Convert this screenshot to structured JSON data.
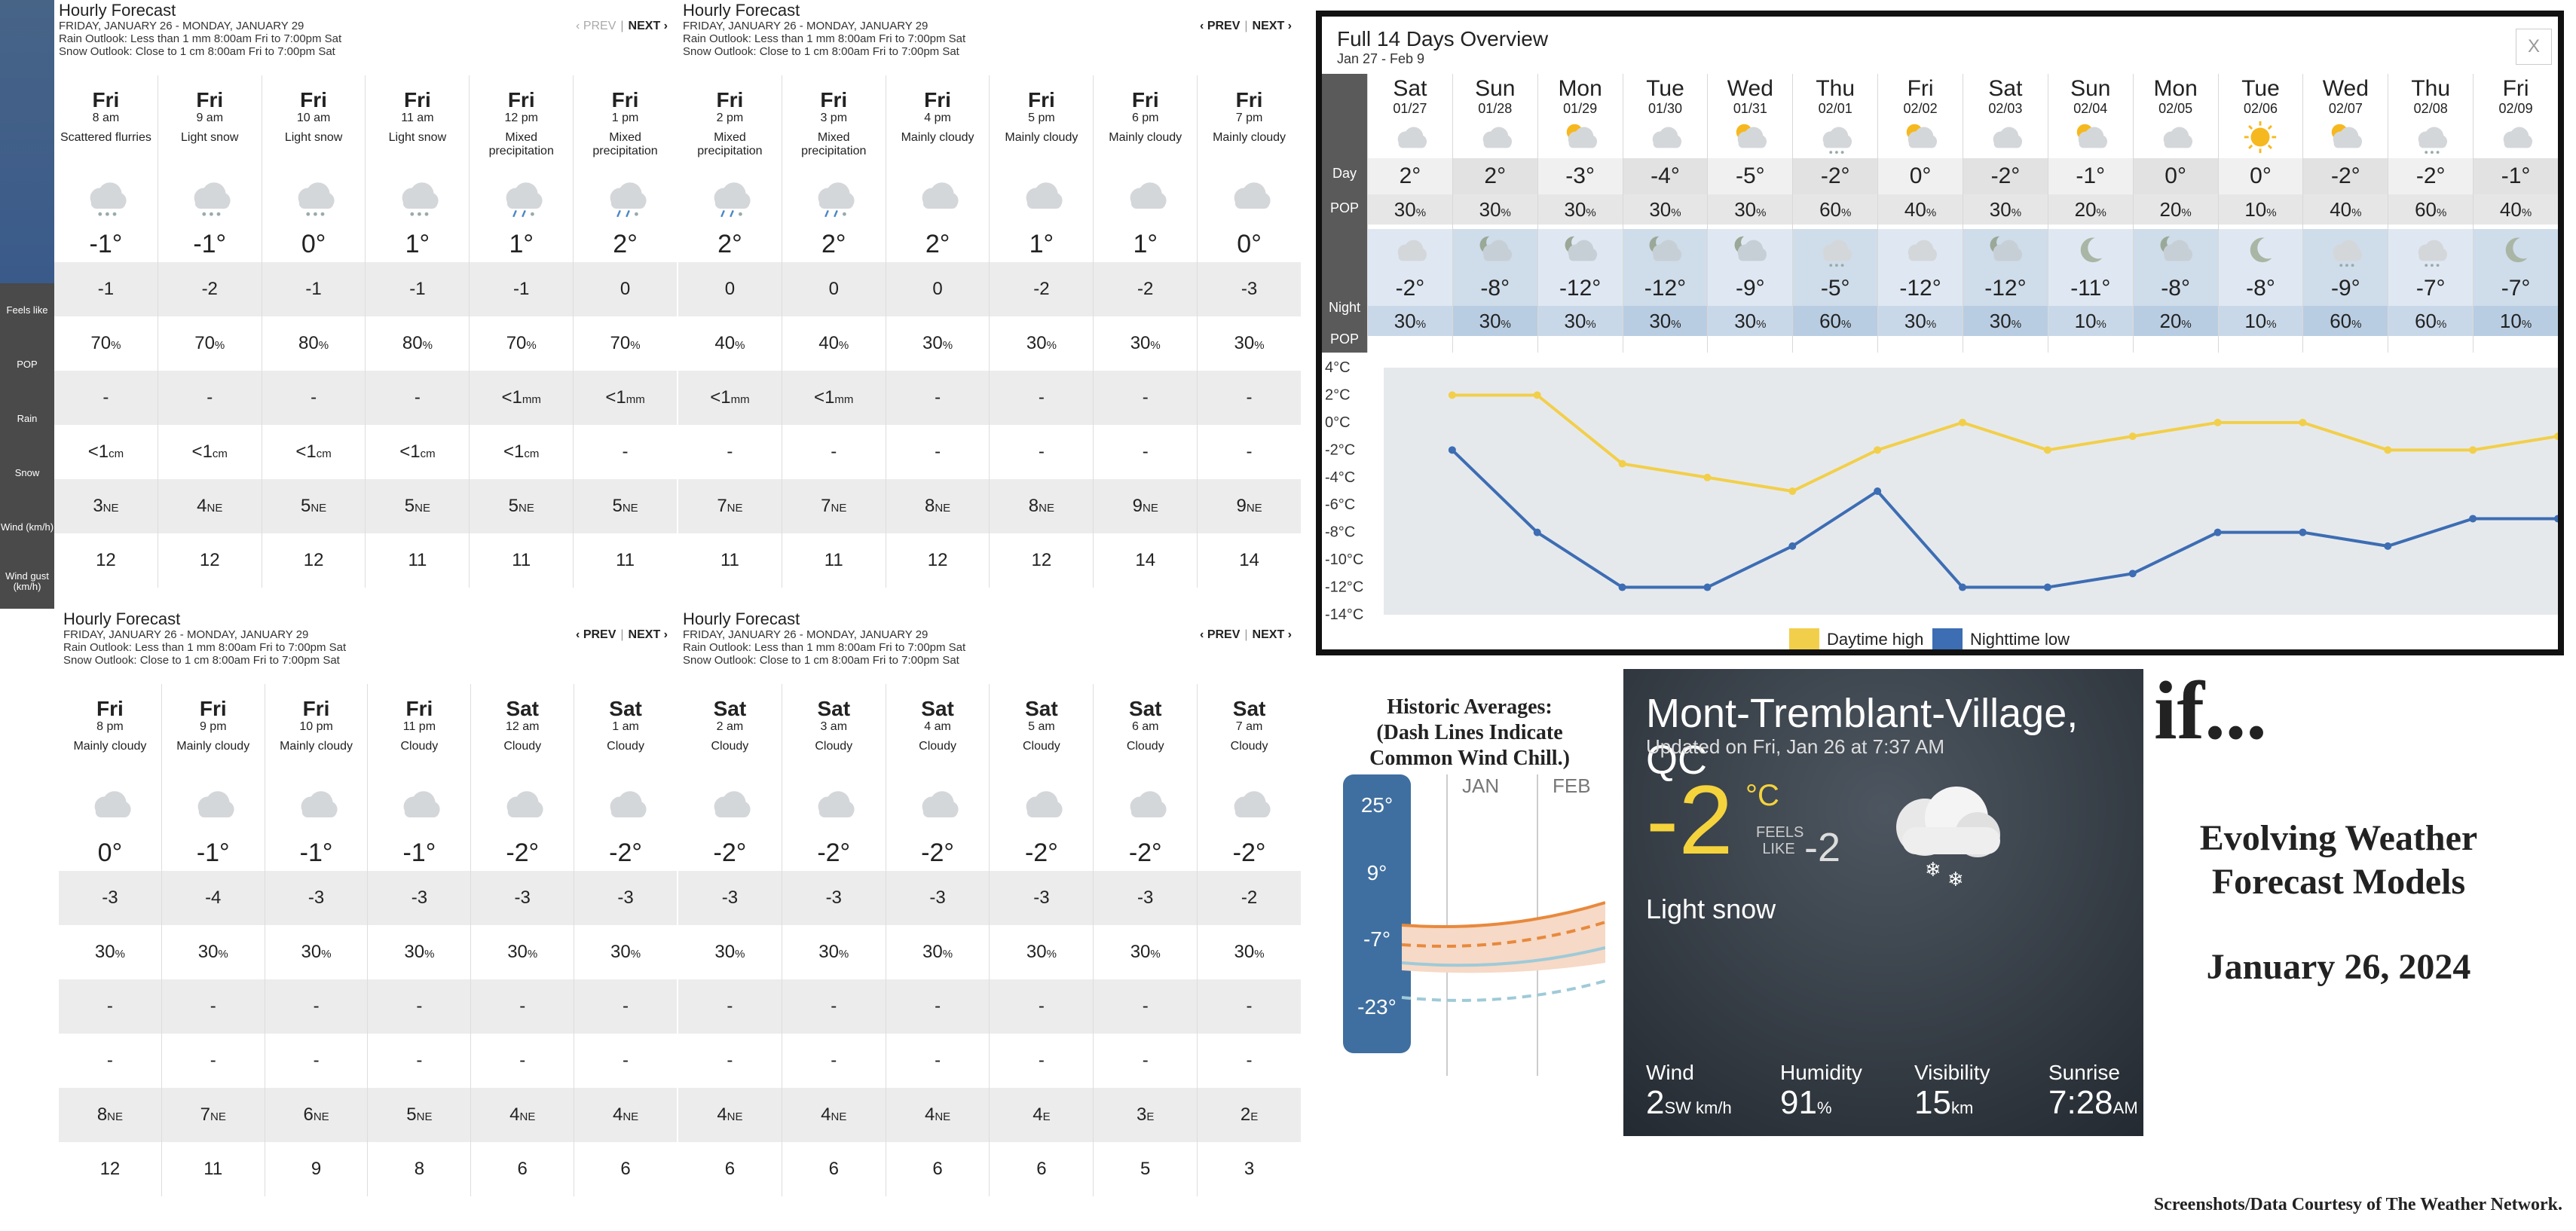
{
  "hourly_panels": [
    {
      "title": "Hourly Forecast",
      "dates": "FRIDAY, JANUARY 26 - MONDAY, JANUARY 29",
      "rain": "Rain Outlook: Less than 1 mm 8:00am Fri to 7:00pm Sat",
      "snow": "Snow Outlook: Close to 1 cm 8:00am Fri to 7:00pm Sat",
      "prev": "‹ PREV",
      "next": "NEXT ›",
      "prev_disabled": true,
      "hours": [
        {
          "day": "Fri",
          "time": "8 am",
          "cond": "Scattered flurries",
          "icon": "flurries-icon",
          "temp": "-1°",
          "feels": "-1",
          "pop": "70",
          "rain": "-",
          "snow": "<1",
          "snow_u": "cm",
          "wind": "3",
          "dir": "NE",
          "gust": "12"
        },
        {
          "day": "Fri",
          "time": "9 am",
          "cond": "Light snow",
          "icon": "light-snow-icon",
          "temp": "-1°",
          "feels": "-2",
          "pop": "70",
          "rain": "-",
          "snow": "<1",
          "snow_u": "cm",
          "wind": "4",
          "dir": "NE",
          "gust": "12"
        },
        {
          "day": "Fri",
          "time": "10 am",
          "cond": "Light snow",
          "icon": "light-snow-icon",
          "temp": "0°",
          "feels": "-1",
          "pop": "80",
          "rain": "-",
          "snow": "<1",
          "snow_u": "cm",
          "wind": "5",
          "dir": "NE",
          "gust": "12"
        },
        {
          "day": "Fri",
          "time": "11 am",
          "cond": "Light snow",
          "icon": "light-snow-icon",
          "temp": "1°",
          "feels": "-1",
          "pop": "80",
          "rain": "-",
          "snow": "<1",
          "snow_u": "cm",
          "wind": "5",
          "dir": "NE",
          "gust": "11"
        },
        {
          "day": "Fri",
          "time": "12 pm",
          "cond": "Mixed precipitation",
          "icon": "mixed-precip-icon",
          "temp": "1°",
          "feels": "-1",
          "pop": "70",
          "rain": "<1",
          "rain_u": "mm",
          "snow": "<1",
          "snow_u": "cm",
          "wind": "5",
          "dir": "NE",
          "gust": "11"
        },
        {
          "day": "Fri",
          "time": "1 pm",
          "cond": "Mixed precipitation",
          "icon": "mixed-precip-icon",
          "temp": "2°",
          "feels": "0",
          "pop": "70",
          "rain": "<1",
          "rain_u": "mm",
          "snow": "-",
          "wind": "5",
          "dir": "NE",
          "gust": "11"
        }
      ]
    },
    {
      "title": "Hourly Forecast",
      "dates": "FRIDAY, JANUARY 26 - MONDAY, JANUARY 29",
      "rain": "Rain Outlook: Less than 1 mm 8:00am Fri to 7:00pm Sat",
      "snow": "Snow Outlook: Close to 1 cm 8:00am Fri to 7:00pm Sat",
      "prev": "‹ PREV",
      "next": "NEXT ›",
      "hours": [
        {
          "day": "Fri",
          "time": "2 pm",
          "cond": "Mixed precipitation",
          "icon": "mixed-precip-icon",
          "temp": "2°",
          "feels": "0",
          "pop": "40",
          "rain": "<1",
          "rain_u": "mm",
          "snow": "-",
          "wind": "7",
          "dir": "NE",
          "gust": "11"
        },
        {
          "day": "Fri",
          "time": "3 pm",
          "cond": "Mixed precipitation",
          "icon": "mixed-precip-icon",
          "temp": "2°",
          "feels": "0",
          "pop": "40",
          "rain": "<1",
          "rain_u": "mm",
          "snow": "-",
          "wind": "7",
          "dir": "NE",
          "gust": "11"
        },
        {
          "day": "Fri",
          "time": "4 pm",
          "cond": "Mainly cloudy",
          "icon": "cloudy-icon",
          "temp": "2°",
          "feels": "0",
          "pop": "30",
          "rain": "-",
          "snow": "-",
          "wind": "8",
          "dir": "NE",
          "gust": "12"
        },
        {
          "day": "Fri",
          "time": "5 pm",
          "cond": "Mainly cloudy",
          "icon": "cloudy-icon",
          "temp": "1°",
          "feels": "-2",
          "pop": "30",
          "rain": "-",
          "snow": "-",
          "wind": "8",
          "dir": "NE",
          "gust": "12"
        },
        {
          "day": "Fri",
          "time": "6 pm",
          "cond": "Mainly cloudy",
          "icon": "cloudy-icon",
          "temp": "1°",
          "feels": "-2",
          "pop": "30",
          "rain": "-",
          "snow": "-",
          "wind": "9",
          "dir": "NE",
          "gust": "14"
        },
        {
          "day": "Fri",
          "time": "7 pm",
          "cond": "Mainly cloudy",
          "icon": "cloudy-icon",
          "temp": "0°",
          "feels": "-3",
          "pop": "30",
          "rain": "-",
          "snow": "-",
          "wind": "9",
          "dir": "NE",
          "gust": "14"
        }
      ]
    },
    {
      "title": "Hourly Forecast",
      "dates": "FRIDAY, JANUARY 26 - MONDAY, JANUARY 29",
      "rain": "Rain Outlook: Less than 1 mm 8:00am Fri to 7:00pm Sat",
      "snow": "Snow Outlook: Close to 1 cm 8:00am Fri to 7:00pm Sat",
      "prev": "‹ PREV",
      "next": "NEXT ›",
      "hours": [
        {
          "day": "Fri",
          "time": "8 pm",
          "cond": "Mainly cloudy",
          "icon": "cloudy-icon",
          "temp": "0°",
          "feels": "-3",
          "pop": "30",
          "rain": "-",
          "snow": "-",
          "wind": "8",
          "dir": "NE",
          "gust": "12"
        },
        {
          "day": "Fri",
          "time": "9 pm",
          "cond": "Mainly cloudy",
          "icon": "cloudy-icon",
          "temp": "-1°",
          "feels": "-4",
          "pop": "30",
          "rain": "-",
          "snow": "-",
          "wind": "7",
          "dir": "NE",
          "gust": "11"
        },
        {
          "day": "Fri",
          "time": "10 pm",
          "cond": "Mainly cloudy",
          "icon": "cloudy-icon",
          "temp": "-1°",
          "feels": "-3",
          "pop": "30",
          "rain": "-",
          "snow": "-",
          "wind": "6",
          "dir": "NE",
          "gust": "9"
        },
        {
          "day": "Fri",
          "time": "11 pm",
          "cond": "Cloudy",
          "icon": "cloudy-icon",
          "temp": "-1°",
          "feels": "-3",
          "pop": "30",
          "rain": "-",
          "snow": "-",
          "wind": "5",
          "dir": "NE",
          "gust": "8"
        },
        {
          "day": "Sat",
          "time": "12 am",
          "cond": "Cloudy",
          "icon": "cloudy-icon",
          "temp": "-2°",
          "feels": "-3",
          "pop": "30",
          "rain": "-",
          "snow": "-",
          "wind": "4",
          "dir": "NE",
          "gust": "6"
        },
        {
          "day": "Sat",
          "time": "1 am",
          "cond": "Cloudy",
          "icon": "cloudy-icon",
          "temp": "-2°",
          "feels": "-3",
          "pop": "30",
          "rain": "-",
          "snow": "-",
          "wind": "4",
          "dir": "NE",
          "gust": "6"
        }
      ]
    },
    {
      "title": "Hourly Forecast",
      "dates": "FRIDAY, JANUARY 26 - MONDAY, JANUARY 29",
      "rain": "Rain Outlook: Less than 1 mm 8:00am Fri to 7:00pm Sat",
      "snow": "Snow Outlook: Close to 1 cm 8:00am Fri to 7:00pm Sat",
      "prev": "‹ PREV",
      "next": "NEXT ›",
      "hours": [
        {
          "day": "Sat",
          "time": "2 am",
          "cond": "Cloudy",
          "icon": "cloudy-icon",
          "temp": "-2°",
          "feels": "-3",
          "pop": "30",
          "rain": "-",
          "snow": "-",
          "wind": "4",
          "dir": "NE",
          "gust": "6"
        },
        {
          "day": "Sat",
          "time": "3 am",
          "cond": "Cloudy",
          "icon": "cloudy-icon",
          "temp": "-2°",
          "feels": "-3",
          "pop": "30",
          "rain": "-",
          "snow": "-",
          "wind": "4",
          "dir": "NE",
          "gust": "6"
        },
        {
          "day": "Sat",
          "time": "4 am",
          "cond": "Cloudy",
          "icon": "cloudy-icon",
          "temp": "-2°",
          "feels": "-3",
          "pop": "30",
          "rain": "-",
          "snow": "-",
          "wind": "4",
          "dir": "NE",
          "gust": "6"
        },
        {
          "day": "Sat",
          "time": "5 am",
          "cond": "Cloudy",
          "icon": "cloudy-icon",
          "temp": "-2°",
          "feels": "-3",
          "pop": "30",
          "rain": "-",
          "snow": "-",
          "wind": "4",
          "dir": "E",
          "gust": "6"
        },
        {
          "day": "Sat",
          "time": "6 am",
          "cond": "Cloudy",
          "icon": "cloudy-icon",
          "temp": "-2°",
          "feels": "-3",
          "pop": "30",
          "rain": "-",
          "snow": "-",
          "wind": "3",
          "dir": "E",
          "gust": "5"
        },
        {
          "day": "Sat",
          "time": "7 am",
          "cond": "Cloudy",
          "icon": "cloudy-icon",
          "temp": "-2°",
          "feels": "-2",
          "pop": "30",
          "rain": "-",
          "snow": "-",
          "wind": "2",
          "dir": "E",
          "gust": "3"
        }
      ]
    }
  ],
  "row_labels": [
    "Feels like",
    "POP",
    "Rain",
    "Snow",
    "Wind (km/h)",
    "Wind gust (km/h)"
  ],
  "overview": {
    "title": "Full 14 Days Overview",
    "range": "Jan 27 - Feb 9",
    "close": "X",
    "day_label": "Day",
    "night_label": "Night",
    "pop_label": "POP",
    "pct": "%",
    "days": [
      {
        "dn": "Sat",
        "dd": "01/27",
        "di": "cloudy-icon",
        "hi": "2°",
        "dpop": "30",
        "ni": "cloudy-icon",
        "lo": "-2°",
        "npop": "30"
      },
      {
        "dn": "Sun",
        "dd": "01/28",
        "di": "cloudy-icon",
        "hi": "2°",
        "dpop": "30",
        "ni": "partly-cloudy-night-icon",
        "lo": "-8°",
        "npop": "30"
      },
      {
        "dn": "Mon",
        "dd": "01/29",
        "di": "sun-cloud-icon",
        "hi": "-3°",
        "dpop": "30",
        "ni": "cloudy-night-icon",
        "lo": "-12°",
        "npop": "30"
      },
      {
        "dn": "Tue",
        "dd": "01/30",
        "di": "cloudy-icon",
        "hi": "-4°",
        "dpop": "30",
        "ni": "cloudy-night-icon",
        "lo": "-12°",
        "npop": "30"
      },
      {
        "dn": "Wed",
        "dd": "01/31",
        "di": "sun-cloud-icon",
        "hi": "-5°",
        "dpop": "30",
        "ni": "cloudy-night-icon",
        "lo": "-9°",
        "npop": "30"
      },
      {
        "dn": "Thu",
        "dd": "02/01",
        "di": "snow-cloud-icon",
        "hi": "-2°",
        "dpop": "60",
        "ni": "snow-cloud-icon",
        "lo": "-5°",
        "npop": "60"
      },
      {
        "dn": "Fri",
        "dd": "02/02",
        "di": "sun-cloud-icon",
        "hi": "0°",
        "dpop": "40",
        "ni": "cloudy-icon",
        "lo": "-12°",
        "npop": "30"
      },
      {
        "dn": "Sat",
        "dd": "02/03",
        "di": "cloudy-icon",
        "hi": "-2°",
        "dpop": "30",
        "ni": "cloudy-night-icon",
        "lo": "-12°",
        "npop": "30"
      },
      {
        "dn": "Sun",
        "dd": "02/04",
        "di": "sun-cloud-icon",
        "hi": "-1°",
        "dpop": "20",
        "ni": "moon-icon",
        "lo": "-11°",
        "npop": "10"
      },
      {
        "dn": "Mon",
        "dd": "02/05",
        "di": "cloudy-icon",
        "hi": "0°",
        "dpop": "20",
        "ni": "cloudy-night-icon",
        "lo": "-8°",
        "npop": "20"
      },
      {
        "dn": "Tue",
        "dd": "02/06",
        "di": "sun-icon",
        "hi": "0°",
        "dpop": "10",
        "ni": "moon-icon",
        "lo": "-8°",
        "npop": "10"
      },
      {
        "dn": "Wed",
        "dd": "02/07",
        "di": "sun-cloud-icon",
        "hi": "-2°",
        "dpop": "40",
        "ni": "snow-cloud-icon",
        "lo": "-9°",
        "npop": "60"
      },
      {
        "dn": "Thu",
        "dd": "02/08",
        "di": "snow-cloud-icon",
        "hi": "-2°",
        "dpop": "60",
        "ni": "snow-cloud-icon",
        "lo": "-7°",
        "npop": "60"
      },
      {
        "dn": "Fri",
        "dd": "02/09",
        "di": "cloudy-icon",
        "hi": "-1°",
        "dpop": "40",
        "ni": "moon-icon",
        "lo": "-7°",
        "npop": "10"
      }
    ]
  },
  "chart_data": {
    "type": "line",
    "x": [
      "01/27",
      "01/28",
      "01/29",
      "01/30",
      "01/31",
      "02/01",
      "02/02",
      "02/03",
      "02/04",
      "02/05",
      "02/06",
      "02/07",
      "02/08",
      "02/09"
    ],
    "series": [
      {
        "name": "Daytime high",
        "color": "#f2cf4a",
        "values": [
          2,
          2,
          -3,
          -4,
          -5,
          -2,
          0,
          -2,
          -1,
          0,
          0,
          -2,
          -2,
          -1
        ]
      },
      {
        "name": "Nighttime low",
        "color": "#3d6db3",
        "values": [
          -2,
          -8,
          -12,
          -12,
          -9,
          -5,
          -12,
          -12,
          -11,
          -8,
          -8,
          -9,
          -7,
          -7
        ]
      }
    ],
    "y_ticks": [
      "4°C",
      "2°C",
      "0°C",
      "-2°C",
      "-4°C",
      "-6°C",
      "-8°C",
      "-10°C",
      "-12°C",
      "-14°C"
    ],
    "ylim": [
      -14,
      4
    ],
    "legend": "bottom"
  },
  "historic": {
    "title": "Historic Averages:",
    "subtitle": "(Dash Lines Indicate Common Wind Chill.)",
    "months": [
      "JAN",
      "FEB"
    ],
    "scale": [
      "25°",
      "9°",
      "-7°",
      "-23°"
    ]
  },
  "current": {
    "location": "Mont-Tremblant-Village, QC",
    "updated": "Updated on Fri, Jan 26 at 7:37 AM",
    "temp": "-2",
    "unit": "°C",
    "feels_label": "FEELS LIKE",
    "feels": "-2",
    "condition": "Light snow",
    "stats": [
      {
        "k": "Wind",
        "v": "2",
        "u": "SW km/h"
      },
      {
        "k": "Humidity",
        "v": "91",
        "u": "%"
      },
      {
        "k": "Visibility",
        "v": "15",
        "u": "km"
      },
      {
        "k": "Sunrise",
        "v": "7:28",
        "u": "AM"
      }
    ]
  },
  "side": {
    "if": "if...",
    "title": "Evolving Weather Forecast Models",
    "date": "January 26, 2024",
    "credit": "Screenshots/Data Courtesy of The Weather Network."
  }
}
